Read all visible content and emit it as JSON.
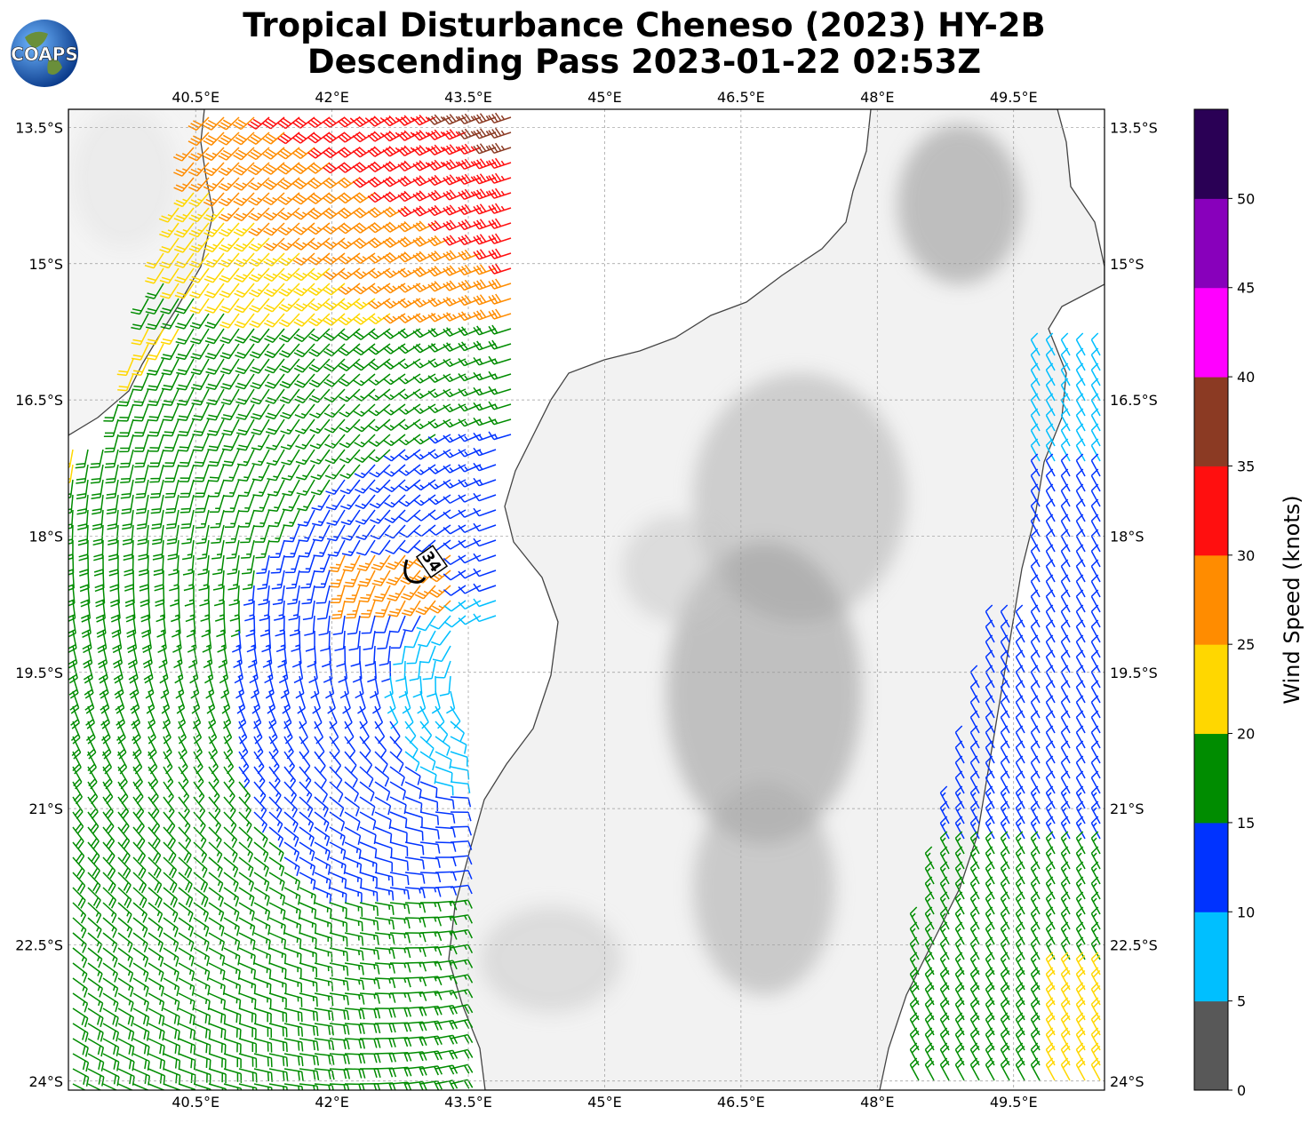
{
  "header": {
    "title_line1": "Tropical Disturbance Cheneso (2023) HY-2B",
    "title_line2": "Descending Pass 2023-01-22 02:53Z",
    "logo_text": "COAPS"
  },
  "map": {
    "lon_ticks": [
      "40.5°E",
      "42°E",
      "43.5°E",
      "45°E",
      "46.5°E",
      "48°E",
      "49.5°E"
    ],
    "lat_ticks": [
      "13.5°S",
      "15°S",
      "16.5°S",
      "18°S",
      "19.5°S",
      "21°S",
      "22.5°S",
      "24°S"
    ],
    "lon_range": [
      39.1,
      50.5
    ],
    "lat_range": [
      -13.3,
      -24.1
    ],
    "storm_marker": {
      "label": "34",
      "lon": 43.0,
      "lat": -18.3
    },
    "gridlines": true,
    "background": "grayscale terrain"
  },
  "colorbar": {
    "title": "Wind Speed (knots)",
    "ticks": [
      "0",
      "5",
      "10",
      "15",
      "20",
      "25",
      "30",
      "35",
      "40",
      "45",
      "50"
    ],
    "colors": [
      "#585858",
      "#00bfff",
      "#0033ff",
      "#008c00",
      "#ffd700",
      "#ff8c00",
      "#ff0f0f",
      "#8b3a23",
      "#ff00ff",
      "#8800bb",
      "#2a0055"
    ]
  }
}
